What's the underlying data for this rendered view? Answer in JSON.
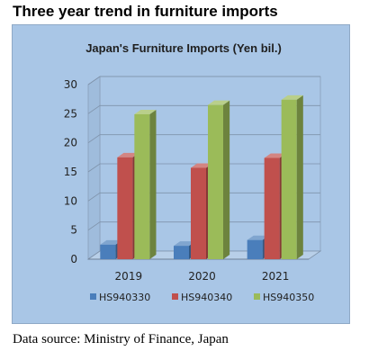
{
  "page": {
    "heading": "Three year trend in furniture imports",
    "source_note": "Data source: Ministry of Finance, Japan"
  },
  "chart_data": {
    "type": "bar",
    "title": "Japan's Furniture Imports (Yen bil.)",
    "xlabel": "",
    "ylabel": "",
    "categories": [
      "2019",
      "2020",
      "2021"
    ],
    "series": [
      {
        "name": "HS940330",
        "color": "#4a7ebb",
        "values": [
          2.5,
          2.3,
          3.3
        ]
      },
      {
        "name": "HS940340",
        "color": "#c0504d",
        "values": [
          17.5,
          15.7,
          17.4
        ]
      },
      {
        "name": "HS940350",
        "color": "#9bbb59",
        "values": [
          24.9,
          26.5,
          27.4
        ]
      }
    ],
    "ylim": [
      0,
      30
    ],
    "yticks": [
      {
        "value": 0,
        "label": "0"
      },
      {
        "value": 5,
        "label": "5"
      },
      {
        "value": 10,
        "label": "10"
      },
      {
        "value": 15,
        "label": "15"
      },
      {
        "value": 20,
        "label": "20"
      },
      {
        "value": 25,
        "label": "25"
      },
      {
        "value": 30,
        "label": "30"
      }
    ],
    "three_d": true,
    "grid": true,
    "legend_position": "bottom"
  }
}
